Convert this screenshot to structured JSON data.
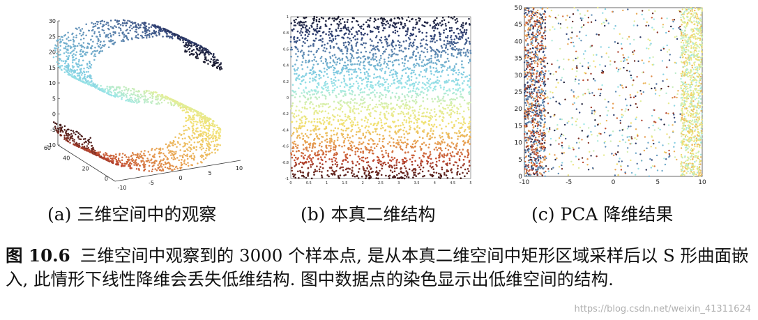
{
  "figure": {
    "label": "图 10.6",
    "caption": "三维空间中观察到的 3000 个样本点, 是从本真二维空间中矩形区域采样后以 S 形曲面嵌入, 此情形下线性降维会丢失低维结构. 图中数据点的染色显示出低维空间的结构.",
    "watermark": "https://blog.csdn.net/weixin_41311624"
  },
  "colormap": [
    "#1a1a2e",
    "#2f3f73",
    "#5c86b0",
    "#7ec8e0",
    "#9ee8e8",
    "#e0f0a0",
    "#f2e070",
    "#e8a050",
    "#c04830",
    "#401818"
  ],
  "chart_data": [
    {
      "type": "scatter",
      "subcaption": "(a) 三维空间中的观察",
      "projection": "3d",
      "n_points": 3000,
      "z_ticks": [
        "30",
        "25",
        "20",
        "15",
        "10",
        "5",
        "0",
        "-5",
        "-10"
      ],
      "x_ticks": [
        "-10",
        "-5",
        "0",
        "5",
        "10"
      ],
      "y_ticks": [
        "60",
        "40",
        "20",
        "0"
      ],
      "zlim": [
        -10,
        30
      ],
      "xlim": [
        -10,
        10
      ],
      "ylim": [
        0,
        60
      ],
      "shape": "S-curve manifold"
    },
    {
      "type": "scatter",
      "subcaption": "(b) 本真二维结构",
      "n_points": 3000,
      "x_ticks": [
        "0",
        "0.5",
        "1",
        "1.5",
        "2",
        "2.5",
        "3",
        "3.5",
        "4",
        "4.5",
        "5"
      ],
      "y_ticks": [
        "1",
        "0.8",
        "0.6",
        "0.4",
        "0.2",
        "0",
        "-0.2",
        "-0.4",
        "-0.6",
        "-0.8",
        "-1"
      ],
      "xlim": [
        0,
        5
      ],
      "ylim": [
        -1,
        1
      ],
      "color_by": "y"
    },
    {
      "type": "scatter",
      "subcaption": "(c) PCA 降维结果",
      "n_points": 3000,
      "x_ticks": [
        "-10",
        "-5",
        "0",
        "5",
        "10"
      ],
      "y_ticks": [
        "50",
        "45",
        "40",
        "35",
        "30",
        "25",
        "20",
        "15",
        "10",
        "5",
        "0"
      ],
      "xlim": [
        -10,
        10
      ],
      "ylim": [
        0,
        50
      ],
      "color_by": "x"
    }
  ]
}
